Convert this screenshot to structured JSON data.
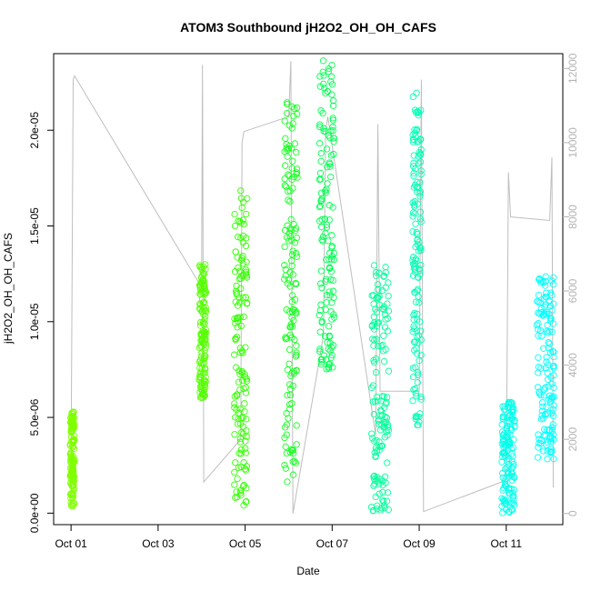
{
  "chart_data": {
    "type": "scatter",
    "title": "ATOM3 Southbound jH2O2_OH_OH_CAFS",
    "xlabel": "Date",
    "ylabel": "jH2O2_OH_OH_CAFS",
    "x_ticks": [
      "Oct 01",
      "Oct 03",
      "Oct 05",
      "Oct 07",
      "Oct 09",
      "Oct 11"
    ],
    "x_tick_days": [
      1,
      3,
      5,
      7,
      9,
      11
    ],
    "xlim_days": [
      0.6,
      12.3
    ],
    "y_ticks": [
      "0.0e+00",
      "5.0e-06",
      "1.0e-05",
      "1.5e-05",
      "2.0e-05"
    ],
    "y_tick_values": [
      0,
      5e-06,
      1e-05,
      1.5e-05,
      2e-05
    ],
    "ylim": [
      -6e-07,
      2.4e-05
    ],
    "y2_ticks": [
      "0",
      "2000",
      "4000",
      "6000",
      "8000",
      "10000",
      "12000"
    ],
    "y2_tick_values": [
      0,
      2000,
      4000,
      6000,
      8000,
      10000,
      12000
    ],
    "y2lim": [
      -300,
      12400
    ],
    "grid": false,
    "secondary_series": {
      "color": "#bebebe",
      "points": [
        [
          1.0,
          1200
        ],
        [
          1.05,
          11700
        ],
        [
          1.08,
          11800
        ],
        [
          4.0,
          6100
        ],
        [
          4.02,
          12100
        ],
        [
          4.05,
          850
        ],
        [
          4.9,
          2000
        ],
        [
          4.93,
          10000
        ],
        [
          4.97,
          10300
        ],
        [
          6.0,
          10700
        ],
        [
          6.05,
          12200
        ],
        [
          6.1,
          0
        ],
        [
          6.8,
          4800
        ],
        [
          6.85,
          10300
        ],
        [
          6.9,
          10700
        ],
        [
          8.0,
          2100
        ],
        [
          8.05,
          10500
        ],
        [
          8.1,
          3300
        ],
        [
          9.0,
          3300
        ],
        [
          9.05,
          11700
        ],
        [
          9.1,
          50
        ],
        [
          11.0,
          900
        ],
        [
          11.05,
          9200
        ],
        [
          11.1,
          8000
        ],
        [
          12.0,
          7900
        ],
        [
          12.05,
          9600
        ],
        [
          12.08,
          700
        ]
      ]
    },
    "clusters": [
      {
        "x_start": 0.98,
        "x_end": 1.08,
        "y_min": 3.5e-07,
        "y_max": 5.3e-06,
        "color": "#80ff00"
      },
      {
        "x_start": 3.95,
        "x_end": 4.1,
        "y_min": 6e-06,
        "y_max": 1.3e-05,
        "color": "#55ff00"
      },
      {
        "x_start": 4.75,
        "x_end": 5.05,
        "y_min": 4e-07,
        "y_max": 1.7e-05,
        "color": "#33ff00"
      },
      {
        "x_start": 5.9,
        "x_end": 6.2,
        "y_min": 1.6e-06,
        "y_max": 2.2e-05,
        "color": "#15ff20"
      },
      {
        "x_start": 6.7,
        "x_end": 7.05,
        "y_min": 7.5e-06,
        "y_max": 2.37e-05,
        "color": "#00ff50"
      },
      {
        "x_start": 7.9,
        "x_end": 8.3,
        "y_min": 1e-07,
        "y_max": 1.3e-05,
        "color": "#00ff9a"
      },
      {
        "x_start": 8.85,
        "x_end": 9.05,
        "y_min": 4.3e-06,
        "y_max": 2.2e-05,
        "color": "#00ffb4"
      },
      {
        "x_start": 10.9,
        "x_end": 11.2,
        "y_min": 0,
        "y_max": 5.8e-06,
        "color": "#00ffea"
      },
      {
        "x_start": 11.7,
        "x_end": 12.1,
        "y_min": 2.8e-06,
        "y_max": 1.24e-05,
        "color": "#00ffff"
      }
    ]
  }
}
